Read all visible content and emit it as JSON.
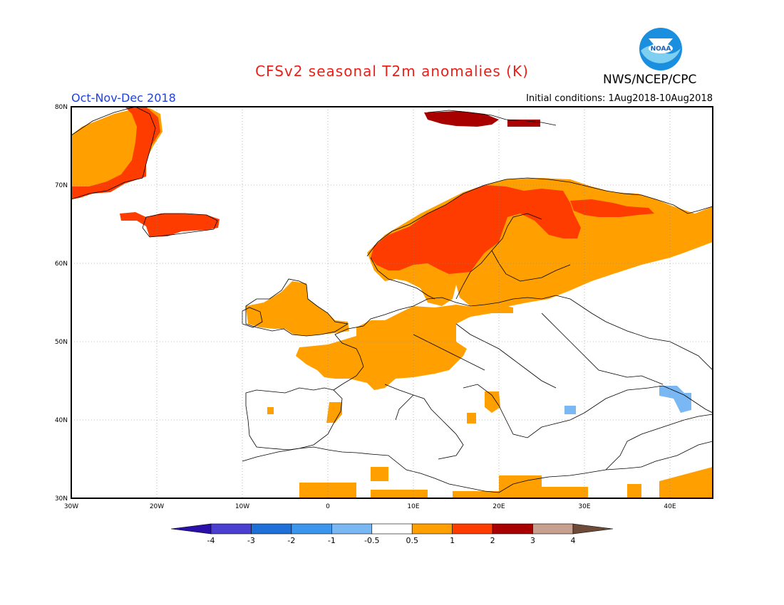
{
  "header": {
    "title": "CFSv2 seasonal T2m anomalies (K)",
    "period": "Oct-Nov-Dec 2018",
    "initial_conditions": "Initial conditions: 1Aug2018-10Aug2018",
    "agency": "NWS/NCEP/CPC",
    "logo_text": "NOAA"
  },
  "map": {
    "lat_labels": [
      "80N",
      "70N",
      "60N",
      "50N",
      "40N",
      "30N"
    ],
    "lon_labels": [
      "30W",
      "20W",
      "10W",
      "0",
      "10E",
      "20E",
      "30E",
      "40E"
    ],
    "lon_range": [
      -30,
      45
    ],
    "lat_range": [
      30,
      80
    ]
  },
  "colorbar": {
    "tick_labels": [
      "-4",
      "-3",
      "-2",
      "-1",
      "-0.5",
      "0.5",
      "1",
      "2",
      "3",
      "4"
    ],
    "colors": [
      "#2a0fa8",
      "#4a3fd0",
      "#1e6fd8",
      "#3c96ee",
      "#7ab8f4",
      "#ffffff",
      "#ffa000",
      "#ff3c00",
      "#a80000",
      "#c8a090",
      "#6e4a38"
    ]
  },
  "anomaly_regions": [
    {
      "name": "Scandinavia",
      "class": "1 to 2 K"
    },
    {
      "name": "Greenland east coast",
      "class": "1 to 2 K"
    },
    {
      "name": "Iceland",
      "class": "1 to 2 K"
    },
    {
      "name": "Svalbard",
      "class": "2 to 3 K"
    },
    {
      "name": "Central Europe",
      "class": "0.5 to 1 K"
    },
    {
      "name": "Western Russia",
      "class": "0.5 to 1 K"
    },
    {
      "name": "Caucasus",
      "class": "-1 to -0.5 K"
    }
  ]
}
